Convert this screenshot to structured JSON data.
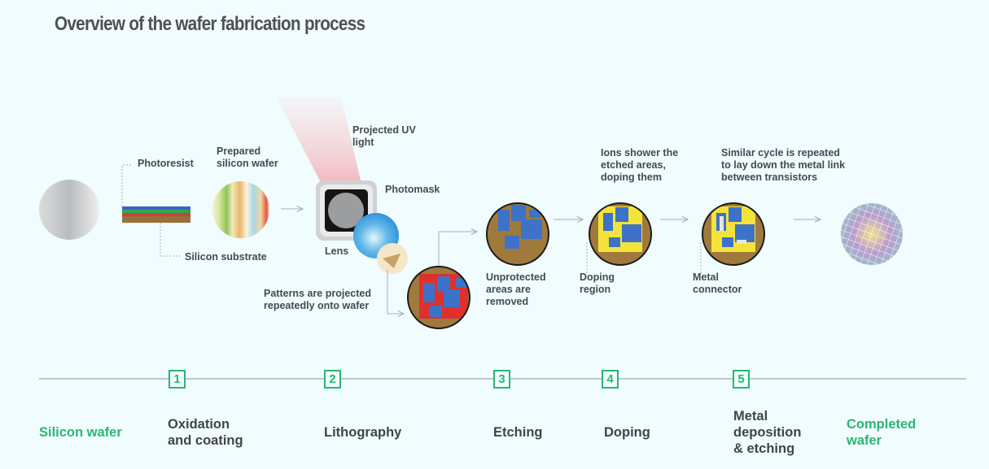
{
  "title": "Overview of the wafer fabrication process",
  "labels": {
    "photoresist": "Photoresist",
    "prepared_wafer": "Prepared\nsilicon wafer",
    "silicon_substrate": "Silicon substrate",
    "projected_uv": "Projected UV\nlight",
    "photomask": "Photomask",
    "lens": "Lens",
    "patterns_projected": "Patterns are projected\nrepeatedly onto wafer",
    "unprotected_removed": "Unprotected\nareas are\nremoved",
    "ions_shower": "Ions shower the\netched areas,\ndoping them",
    "doping_region": "Doping\nregion",
    "cycle_repeated": "Similar cycle is repeated\nto lay down the metal link\nbetween transistors",
    "metal_connector": "Metal\nconnector"
  },
  "steps": [
    {
      "number": "1",
      "name": "Oxidation\nand coating"
    },
    {
      "number": "2",
      "name": "Lithography"
    },
    {
      "number": "3",
      "name": "Etching"
    },
    {
      "number": "4",
      "name": "Doping"
    },
    {
      "number": "5",
      "name": "Metal\ndeposition\n& etching"
    }
  ],
  "start_label": "Silicon wafer",
  "end_label": "Completed\nwafer",
  "colors": {
    "accent_green": "#2bb673",
    "background": "#f0fcfd",
    "text": "#454b50",
    "substrate_brown": "#a07a3c",
    "transistor_blue": "#3d72c8",
    "doping_yellow": "#f3e33a",
    "pattern_red": "#e0302c"
  }
}
